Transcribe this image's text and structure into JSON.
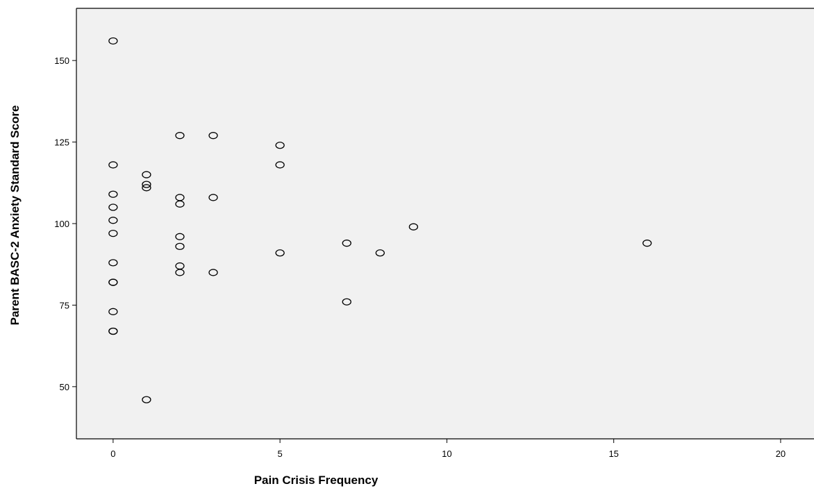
{
  "chart_data": {
    "type": "scatter",
    "title": "",
    "xlabel": "Pain Crisis Frequency",
    "ylabel": "Parent BASC-2 Anxiety Standard Score",
    "xlim": [
      -1.1,
      21.0
    ],
    "ylim": [
      34,
      166
    ],
    "x_ticks": [
      "0",
      "5",
      "10",
      "15",
      "20"
    ],
    "y_ticks": [
      "50",
      "75",
      "100",
      "125",
      "150"
    ],
    "grid": false,
    "marker": "open-circle",
    "colors": {
      "plot_background": "#f1f1f1",
      "marker_edge": "#000000",
      "axis": "#000000"
    },
    "points": [
      {
        "x": 0,
        "y": 156
      },
      {
        "x": 0,
        "y": 118
      },
      {
        "x": 0,
        "y": 109
      },
      {
        "x": 0,
        "y": 105
      },
      {
        "x": 0,
        "y": 101
      },
      {
        "x": 0,
        "y": 97
      },
      {
        "x": 0,
        "y": 88
      },
      {
        "x": 0,
        "y": 82
      },
      {
        "x": 0,
        "y": 82
      },
      {
        "x": 0,
        "y": 73
      },
      {
        "x": 0,
        "y": 67
      },
      {
        "x": 0,
        "y": 67
      },
      {
        "x": 1,
        "y": 115
      },
      {
        "x": 1,
        "y": 112
      },
      {
        "x": 1,
        "y": 111
      },
      {
        "x": 1,
        "y": 46
      },
      {
        "x": 2,
        "y": 127
      },
      {
        "x": 2,
        "y": 108
      },
      {
        "x": 2,
        "y": 106
      },
      {
        "x": 2,
        "y": 96
      },
      {
        "x": 2,
        "y": 93
      },
      {
        "x": 2,
        "y": 87
      },
      {
        "x": 2,
        "y": 85
      },
      {
        "x": 3,
        "y": 127
      },
      {
        "x": 3,
        "y": 108
      },
      {
        "x": 3,
        "y": 85
      },
      {
        "x": 5,
        "y": 124
      },
      {
        "x": 5,
        "y": 118
      },
      {
        "x": 5,
        "y": 91
      },
      {
        "x": 7,
        "y": 94
      },
      {
        "x": 7,
        "y": 76
      },
      {
        "x": 8,
        "y": 91
      },
      {
        "x": 9,
        "y": 99
      },
      {
        "x": 16,
        "y": 94
      }
    ]
  }
}
